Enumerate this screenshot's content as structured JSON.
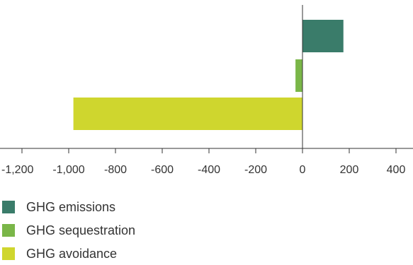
{
  "chart_data": {
    "type": "bar",
    "orientation": "horizontal",
    "categories": [
      "GHG emissions",
      "GHG sequestration",
      "GHG avoidance"
    ],
    "values": [
      175,
      -30,
      -980
    ],
    "colors": [
      "#3a7c6a",
      "#7ab648",
      "#cfd62e"
    ],
    "xlim": [
      -1260,
      470
    ],
    "xticks": [
      -1200,
      -1000,
      -800,
      -600,
      -400,
      -200,
      0,
      200,
      400
    ],
    "xtick_labels": [
      "-1,200",
      "-1,000",
      "-800",
      "-600",
      "-400",
      "-200",
      "0",
      "200",
      "400"
    ],
    "title": "",
    "xlabel": "",
    "ylabel": "",
    "grid": false,
    "legend_position": "bottom-left"
  },
  "legend": {
    "items": [
      {
        "label": "GHG emissions",
        "color": "#3a7c6a"
      },
      {
        "label": "GHG sequestration",
        "color": "#7ab648"
      },
      {
        "label": "GHG avoidance",
        "color": "#cfd62e"
      }
    ]
  }
}
